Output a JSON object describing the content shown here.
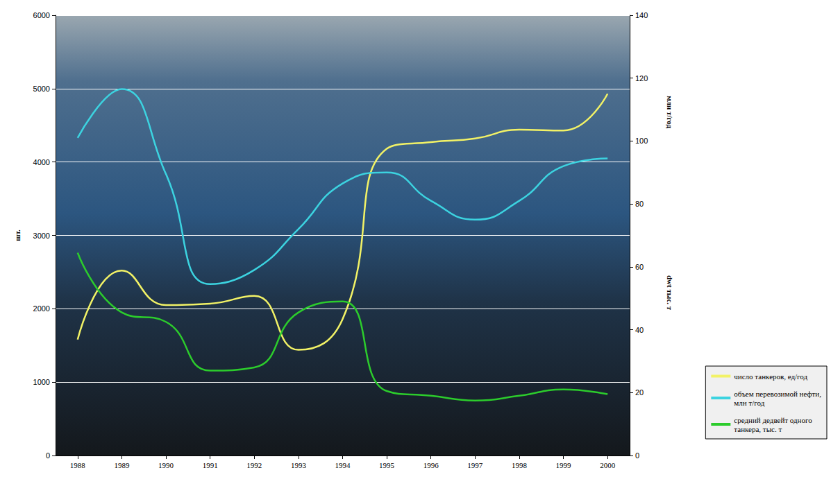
{
  "chart_data": {
    "type": "line",
    "categories": [
      "1988",
      "1989",
      "1990",
      "1991",
      "1992",
      "1993",
      "1994",
      "1995",
      "1996",
      "1997",
      "1998",
      "1999",
      "2000"
    ],
    "y_label": "шт.",
    "y2_labels": [
      "млн т/год",
      "dwt тыс. т"
    ],
    "ylim": [
      0,
      6000
    ],
    "yticks": [
      0,
      1000,
      2000,
      3000,
      4000,
      5000,
      6000
    ],
    "y2lim": [
      0,
      140
    ],
    "y2ticks": [
      0,
      20,
      40,
      60,
      80,
      100,
      120,
      140
    ],
    "grid": true,
    "legend": "bottom-right",
    "series": [
      {
        "name": "число танкеров, ед/год",
        "color": "#f2f266",
        "line_style": "smooth",
        "values": [
          1580,
          2520,
          2050,
          2070,
          2175,
          1440,
          1860,
          4180,
          4270,
          4320,
          4440,
          4430,
          4930
        ]
      },
      {
        "name": "объем перевозимой нефти, млн т/год",
        "color": "#3cd3e0",
        "axis": "y2",
        "line_style": "smooth",
        "values": [
          101,
          116.5,
          89.5,
          54.5,
          59,
          72,
          86.5,
          90,
          81,
          75,
          81,
          92,
          94.5
        ]
      },
      {
        "name": "средний дедвейт одного танкера, тыс. т",
        "color": "#2ccc2c",
        "axis": "y2",
        "line_style": "smooth",
        "values": [
          64.5,
          45.5,
          42.5,
          27,
          28,
          45.5,
          49,
          20.5,
          19,
          17.5,
          19,
          21,
          19.5
        ]
      }
    ]
  }
}
